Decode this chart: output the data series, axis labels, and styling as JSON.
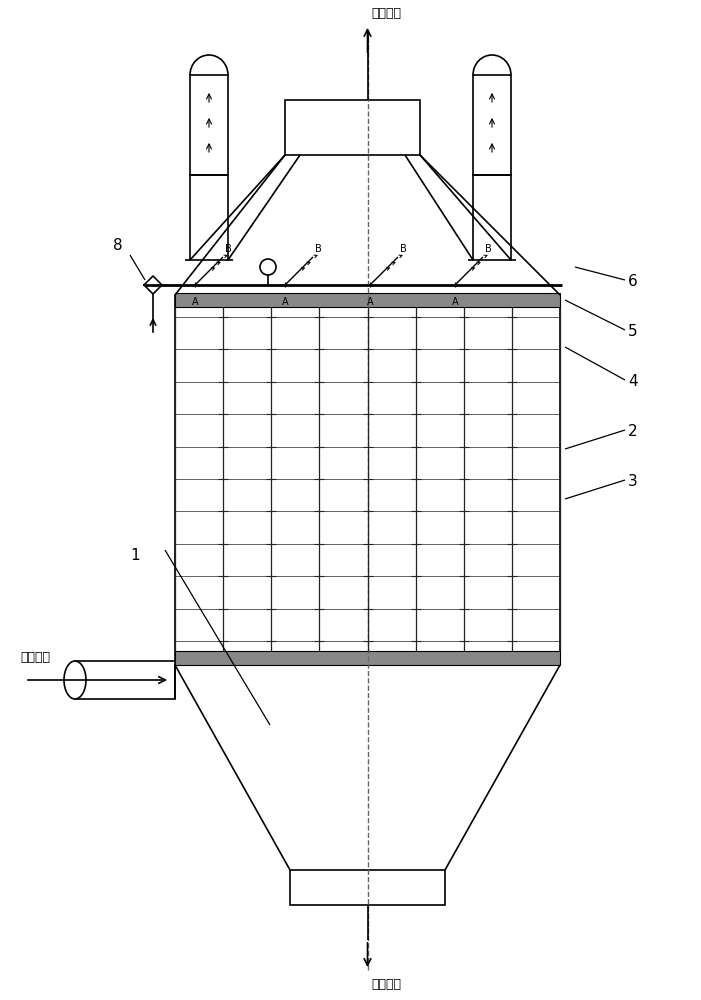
{
  "bg_color": "#ffffff",
  "line_color": "#000000",
  "fig_width": 7.01,
  "fig_height": 10.0,
  "labels": {
    "gas_out": "气体出口",
    "gas_in": "气体入口",
    "dust_out": "灰尘出口",
    "num1": "1",
    "num2": "2",
    "num3": "3",
    "num4": "4",
    "num5": "5",
    "num6": "6",
    "num8": "8"
  }
}
